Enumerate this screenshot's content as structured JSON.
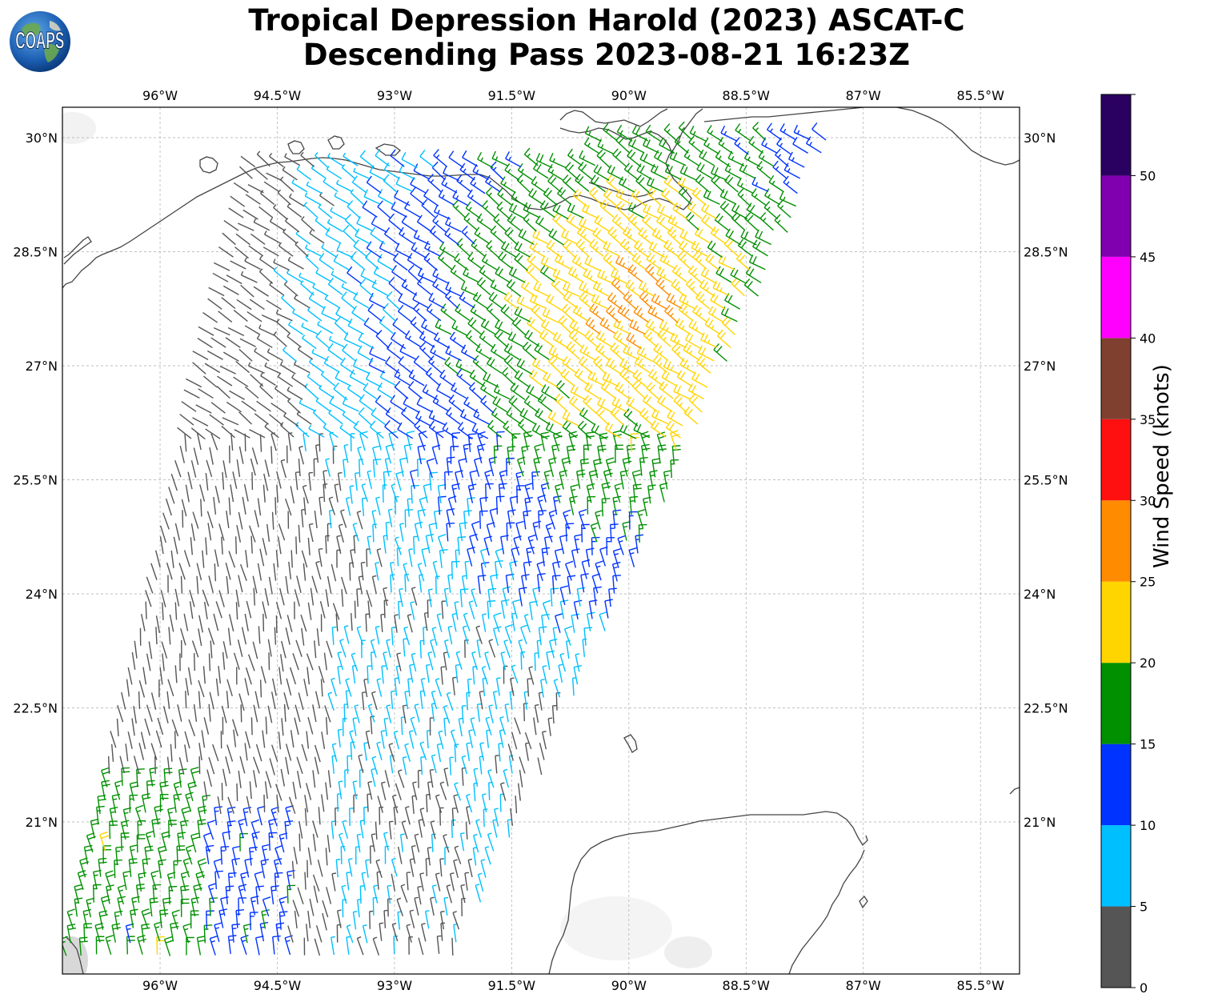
{
  "title": {
    "line1": "Tropical Depression Harold (2023) ASCAT-C",
    "line2": "Descending Pass 2023-08-21 16:23Z"
  },
  "logo": {
    "text": "COAPS",
    "icon": "globe-icon"
  },
  "map": {
    "lon_range": [
      -97.25,
      -85.0
    ],
    "lat_range": [
      19.0,
      30.4
    ],
    "lon_ticks": [
      {
        "value": -96.0,
        "label": "96°W"
      },
      {
        "value": -94.5,
        "label": "94.5°W"
      },
      {
        "value": -93.0,
        "label": "93°W"
      },
      {
        "value": -91.5,
        "label": "91.5°W"
      },
      {
        "value": -90.0,
        "label": "90°W"
      },
      {
        "value": -88.5,
        "label": "88.5°W"
      },
      {
        "value": -87.0,
        "label": "87°W"
      },
      {
        "value": -85.5,
        "label": "85.5°W"
      }
    ],
    "lat_ticks": [
      {
        "value": 30.0,
        "label": "30°N"
      },
      {
        "value": 28.5,
        "label": "28.5°N"
      },
      {
        "value": 27.0,
        "label": "27°N"
      },
      {
        "value": 25.5,
        "label": "25.5°N"
      },
      {
        "value": 24.0,
        "label": "24°N"
      },
      {
        "value": 22.5,
        "label": "22.5°N"
      },
      {
        "value": 21.0,
        "label": "21°N"
      }
    ],
    "grid": true
  },
  "colorbar": {
    "label": "Wind Speed (knots)",
    "ticks": [
      "0",
      "5",
      "10",
      "15",
      "20",
      "25",
      "30",
      "35",
      "40",
      "45",
      "50"
    ],
    "bins": [
      {
        "min": 0,
        "max": 5,
        "color": "#555555"
      },
      {
        "min": 5,
        "max": 10,
        "color": "#00bfff"
      },
      {
        "min": 10,
        "max": 15,
        "color": "#0033ff"
      },
      {
        "min": 15,
        "max": 20,
        "color": "#009000"
      },
      {
        "min": 20,
        "max": 25,
        "color": "#ffd500"
      },
      {
        "min": 25,
        "max": 30,
        "color": "#ff8c00"
      },
      {
        "min": 30,
        "max": 35,
        "color": "#ff1010"
      },
      {
        "min": 35,
        "max": 40,
        "color": "#804030"
      },
      {
        "min": 40,
        "max": 45,
        "color": "#ff00ff"
      },
      {
        "min": 45,
        "max": 50,
        "color": "#8000b0"
      },
      {
        "min": 50,
        "max": 55,
        "color": "#2a0060"
      }
    ]
  },
  "colors": {
    "coastline": "#444444",
    "grid": "#aaaaaa",
    "frame": "#000000"
  }
}
